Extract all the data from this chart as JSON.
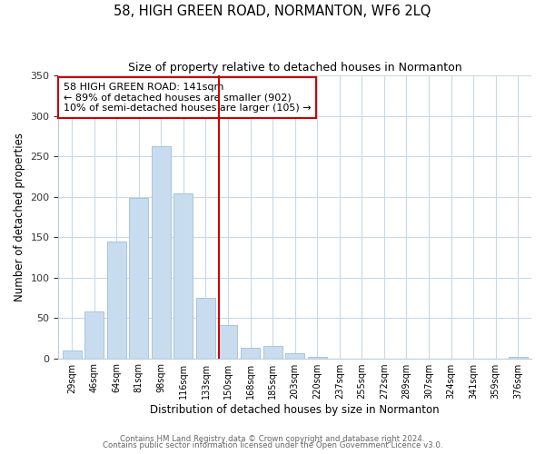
{
  "title": "58, HIGH GREEN ROAD, NORMANTON, WF6 2LQ",
  "subtitle": "Size of property relative to detached houses in Normanton",
  "xlabel": "Distribution of detached houses by size in Normanton",
  "ylabel": "Number of detached properties",
  "bar_labels": [
    "29sqm",
    "46sqm",
    "64sqm",
    "81sqm",
    "98sqm",
    "116sqm",
    "133sqm",
    "150sqm",
    "168sqm",
    "185sqm",
    "203sqm",
    "220sqm",
    "237sqm",
    "255sqm",
    "272sqm",
    "289sqm",
    "307sqm",
    "324sqm",
    "341sqm",
    "359sqm",
    "376sqm"
  ],
  "bar_heights": [
    10,
    58,
    145,
    198,
    262,
    204,
    75,
    41,
    13,
    15,
    6,
    2,
    0,
    0,
    0,
    0,
    0,
    0,
    0,
    0,
    2
  ],
  "bar_color": "#c8dcf0",
  "bar_edge_color": "#a8c4dc",
  "highlight_line_color": "#cc0000",
  "annotation_title": "58 HIGH GREEN ROAD: 141sqm",
  "annotation_line1": "← 89% of detached houses are smaller (902)",
  "annotation_line2": "10% of semi-detached houses are larger (105) →",
  "annotation_box_color": "#ffffff",
  "annotation_box_edge": "#cc0000",
  "ylim": [
    0,
    350
  ],
  "yticks": [
    0,
    50,
    100,
    150,
    200,
    250,
    300,
    350
  ],
  "footer1": "Contains HM Land Registry data © Crown copyright and database right 2024.",
  "footer2": "Contains public sector information licensed under the Open Government Licence v3.0.",
  "bg_color": "#ffffff",
  "grid_color": "#c8d8e8"
}
